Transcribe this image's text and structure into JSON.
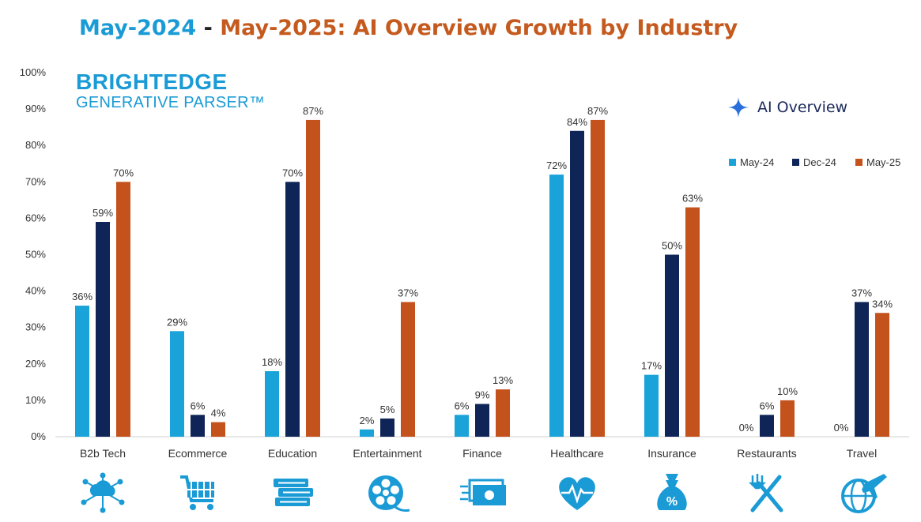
{
  "title": {
    "part1": "May-2024",
    "sep": " - ",
    "part2": "May-2025: AI Overview Growth by Industry",
    "color1": "#1a9bd6",
    "color_sep": "#222222",
    "color2": "#c55a1e"
  },
  "brand": {
    "line1": "BRIGHTEDGE",
    "line2": "GENERATIVE PARSER™"
  },
  "badge": {
    "label": "AI Overview",
    "icon": "sparkle-icon"
  },
  "colors": {
    "May-24": "#1aa3d9",
    "Dec-24": "#0f2457",
    "May-25": "#c4521c"
  },
  "chart_data": {
    "type": "bar",
    "categories": [
      "B2b Tech",
      "Ecommerce",
      "Education",
      "Entertainment",
      "Finance",
      "Healthcare",
      "Insurance",
      "Restaurants",
      "Travel"
    ],
    "series": [
      {
        "name": "May-24",
        "values": [
          36,
          29,
          18,
          2,
          6,
          72,
          17,
          0,
          0
        ],
        "labels": [
          "36%",
          "29%",
          "18%",
          "2%",
          "6%",
          "72%",
          "17%",
          "0%",
          "0%"
        ]
      },
      {
        "name": "Dec-24",
        "values": [
          59,
          6,
          70,
          5,
          9,
          84,
          50,
          6,
          37
        ],
        "labels": [
          "59%",
          "6%",
          "70%",
          "5%",
          "9%",
          "84%",
          "50%",
          "6%",
          "37%"
        ]
      },
      {
        "name": "May-25",
        "values": [
          70,
          4,
          87,
          37,
          13,
          87,
          63,
          10,
          34
        ],
        "labels": [
          "70%",
          "4%",
          "87%",
          "37%",
          "13%",
          "87%",
          "63%",
          "10%",
          "34%"
        ]
      }
    ],
    "yticks": [
      "0%",
      "10%",
      "20%",
      "30%",
      "40%",
      "50%",
      "60%",
      "70%",
      "80%",
      "90%",
      "100%"
    ],
    "ylim": [
      0,
      100
    ],
    "grid": false,
    "legend": "top-right",
    "category_icons": [
      "cloud-network-icon",
      "shopping-cart-icon",
      "books-icon",
      "film-reel-icon",
      "cash-icon",
      "heart-pulse-icon",
      "money-bag-icon",
      "fork-knife-icon",
      "globe-plane-icon"
    ],
    "icon_color": "#1a9bd6"
  }
}
